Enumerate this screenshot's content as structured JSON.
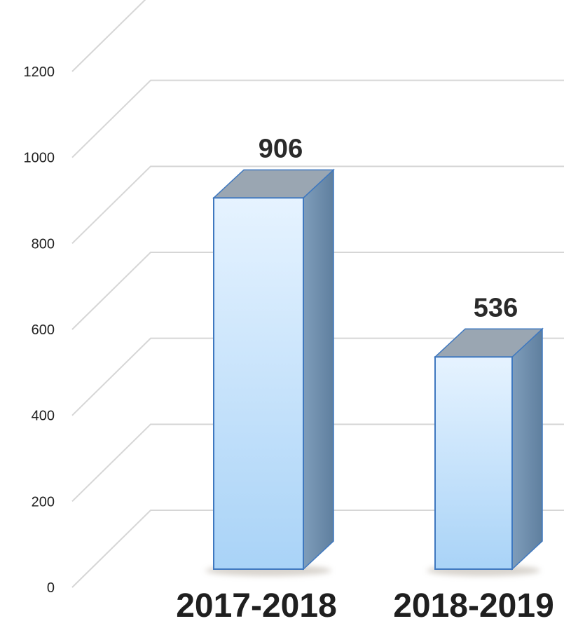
{
  "chart_data": {
    "type": "bar",
    "style": "3d-column",
    "title": "",
    "xlabel": "",
    "ylabel": "",
    "categories": [
      "2017-2018",
      "2018-2019"
    ],
    "values": [
      906,
      536
    ],
    "ylim": [
      0,
      1200
    ],
    "yticks": [
      0,
      200,
      400,
      600,
      800,
      1000,
      1200
    ],
    "ytick_labels": [
      "0",
      "200",
      "400",
      "600",
      "800",
      "1000",
      "1200"
    ],
    "data_labels": [
      "906",
      "536"
    ],
    "grid": true,
    "legend": "none",
    "colors": {
      "bar_face_top": "#e6f3ff",
      "bar_face_bottom": "#a9d3f7",
      "bar_side": "#6f8fae",
      "bar_top": "#9aa6b2",
      "bar_edge": "#3f78bf",
      "grid": "#d6d6d6"
    }
  }
}
